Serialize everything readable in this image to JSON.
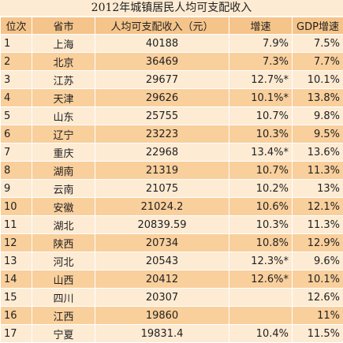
{
  "title": "2012年城镇居民人均可支配收入",
  "table": {
    "header": [
      "位次",
      "省市",
      "人均可支配收入（元）",
      "增速",
      "GDP增速"
    ],
    "rows": [
      [
        "1",
        "上海",
        "40188",
        "7.9%",
        "7.5%"
      ],
      [
        "2",
        "北京",
        "36469",
        "7.3%",
        "7.7%"
      ],
      [
        "3",
        "江苏",
        "29677",
        "12.7%*",
        "10.1%"
      ],
      [
        "4",
        "天津",
        "29626",
        "10.1%*",
        "13.8%"
      ],
      [
        "5",
        "山东",
        "25755",
        "10.7%",
        "9.8%"
      ],
      [
        "6",
        "辽宁",
        "23223",
        "10.3%",
        "9.5%"
      ],
      [
        "7",
        "重庆",
        "22968",
        "13.4%*",
        "13.6%"
      ],
      [
        "8",
        "湖南",
        "21319",
        "10.7%",
        "11.3%"
      ],
      [
        "9",
        "云南",
        "21075",
        "10.2%",
        "13%"
      ],
      [
        "10",
        "安徽",
        "21024.2",
        "10.6%",
        "12.1%"
      ],
      [
        "11",
        "湖北",
        "20839.59",
        "10.3%",
        "11.3%"
      ],
      [
        "12",
        "陕西",
        "20734",
        "10.8%",
        "12.9%"
      ],
      [
        "13",
        "河北",
        "20543",
        "12.3%*",
        "9.6%"
      ],
      [
        "14",
        "山西",
        "20412",
        "12.6%*",
        "10.1%"
      ],
      [
        "15",
        "四川",
        "20307",
        null,
        "12.6%"
      ],
      [
        "16",
        "江西",
        "19860",
        null,
        "11%"
      ],
      [
        "17",
        "宁夏",
        "19831.4",
        "10.4%",
        "11.5%"
      ]
    ]
  }
}
